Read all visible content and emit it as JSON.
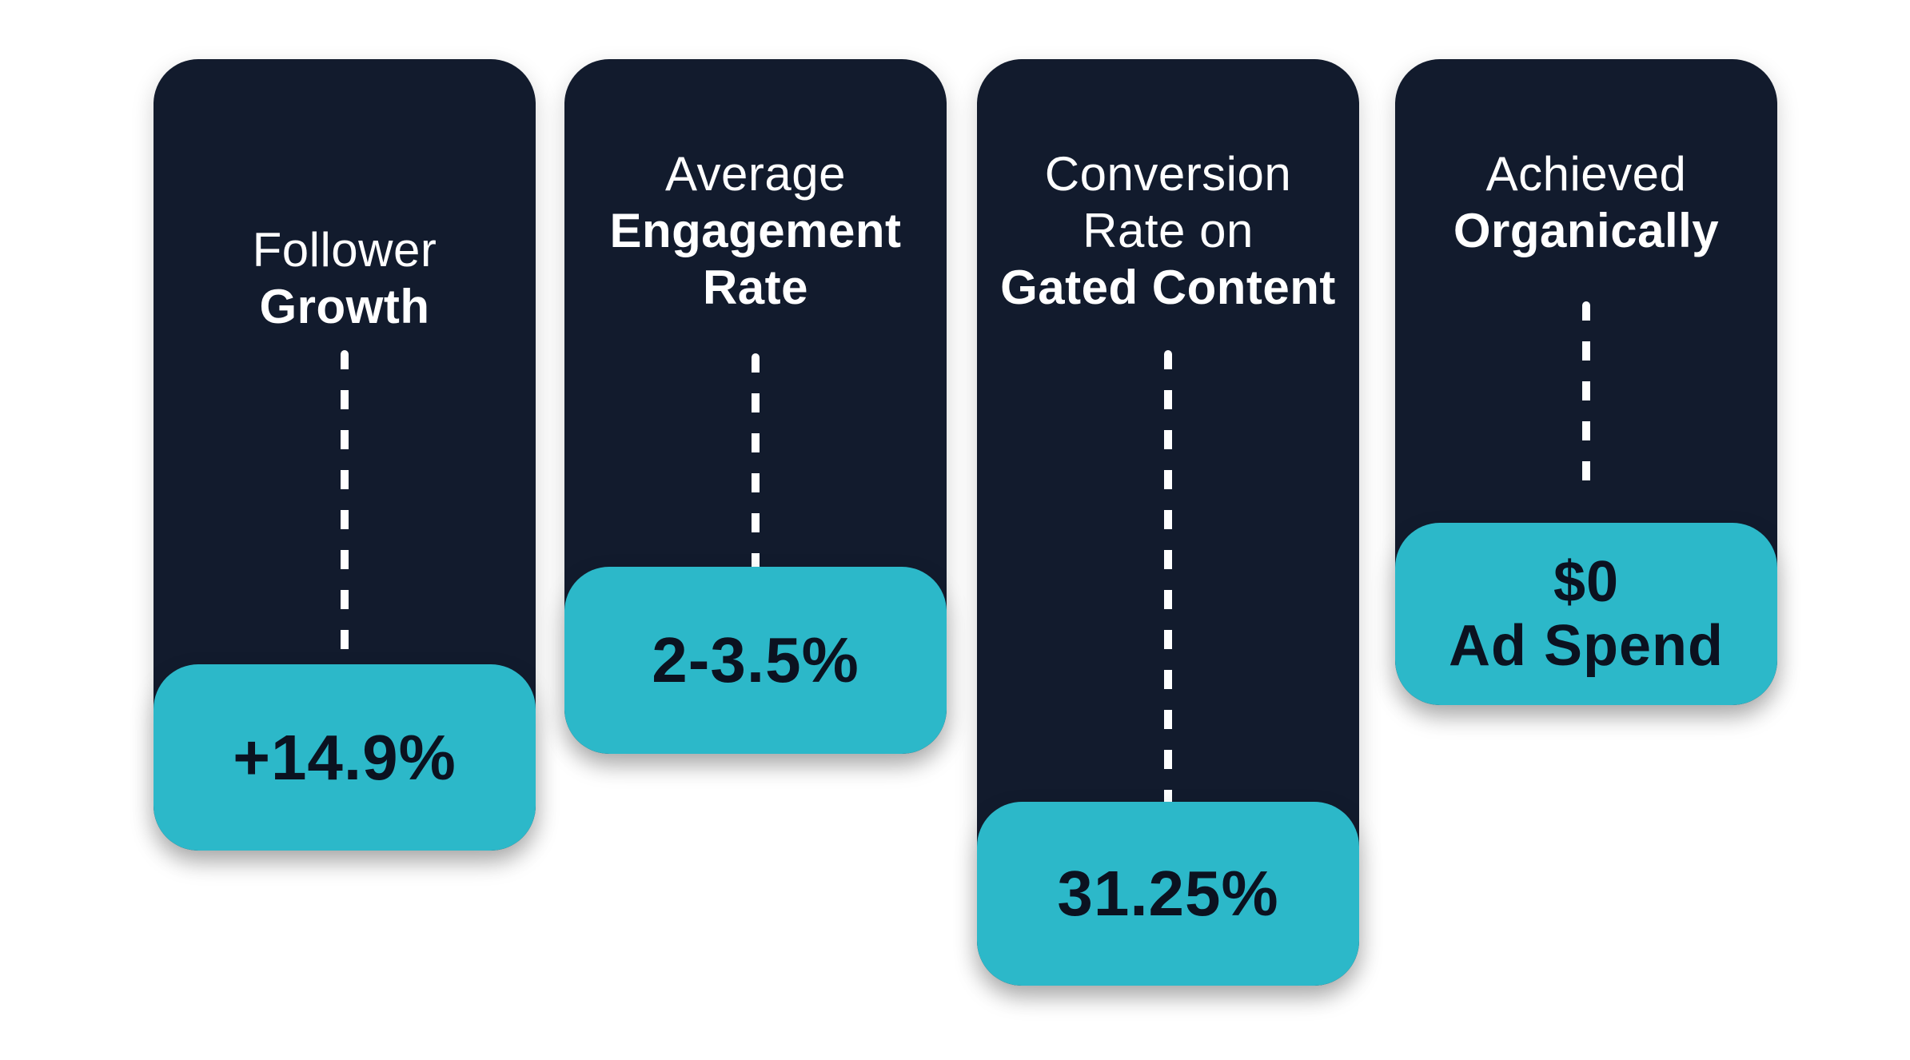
{
  "metrics": [
    {
      "label_light": "Follower",
      "label_bold": "Growth",
      "value": "+14.9%"
    },
    {
      "label_light": "Average",
      "label_bold_1": "Engagement",
      "label_bold_2": "Rate",
      "value": "2-3.5%"
    },
    {
      "label_light_1": "Conversion",
      "label_light_2": "Rate on",
      "label_bold": "Gated Content",
      "value": "31.25%"
    },
    {
      "label_light": "Achieved",
      "label_bold": "Organically",
      "value_1": "$0",
      "value_2": "Ad Spend"
    }
  ],
  "colors": {
    "card_bg": "#121b2d",
    "badge_bg": "#2cb8c9",
    "badge_text": "#0b1220",
    "label_text": "#ffffff"
  }
}
